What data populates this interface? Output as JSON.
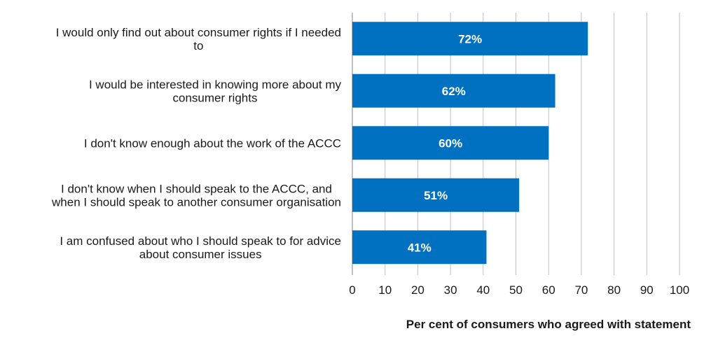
{
  "chart_data": {
    "type": "bar",
    "orientation": "horizontal",
    "categories": [
      [
        "I would only find out about consumer rights if I needed",
        "to"
      ],
      [
        "I would be interested in knowing more about my",
        "consumer rights"
      ],
      [
        "I don't know enough about the work of the ACCC"
      ],
      [
        "I don't know when I should speak to the ACCC, and",
        "when I should speak to another consumer organisation"
      ],
      [
        "I am confused about who I should speak to for advice",
        "about consumer issues"
      ]
    ],
    "values": [
      72,
      62,
      60,
      51,
      41
    ],
    "data_labels": [
      "72%",
      "62%",
      "60%",
      "51%",
      "41%"
    ],
    "xlabel": "Per cent of consumers who agreed with statement",
    "xlim": [
      0,
      100
    ],
    "ticks": [
      "0",
      "10",
      "20",
      "30",
      "40",
      "50",
      "60",
      "70",
      "80",
      "90",
      "100"
    ],
    "grid": true,
    "bar_color": "#0070c0",
    "grid_color": "#bfbfbf"
  }
}
